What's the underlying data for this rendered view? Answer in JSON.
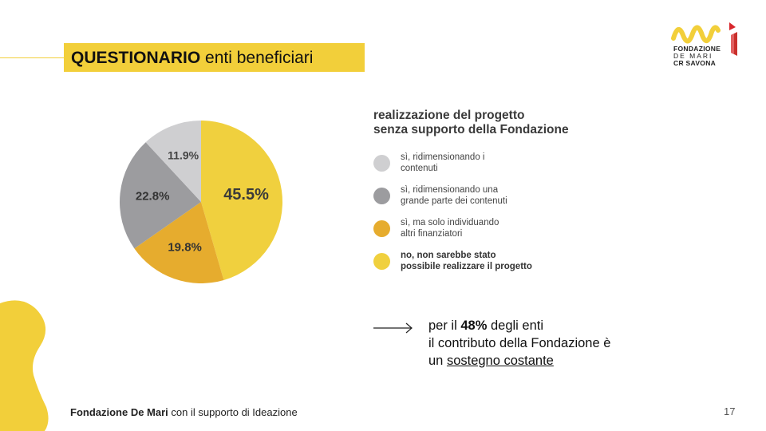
{
  "header": {
    "title_bold": "QUESTIONARIO",
    "title_rest": "enti beneficiari"
  },
  "logo": {
    "line1": "FONDAZIONE",
    "line2": "DE MARI",
    "line3": "CR SAVONA",
    "brand_color": "#f2cf3a",
    "accent_color": "#d8262c"
  },
  "chart_data": {
    "type": "pie",
    "title": "realizzazione del progetto senza supporto della Fondazione",
    "title_lines": [
      "realizzazione del progetto",
      "senza supporto della Fondazione"
    ],
    "slices": [
      {
        "label": "no, non sarebbe stato possibile realizzare il progetto",
        "label_lines": [
          "no, non sarebbe stato",
          "possibile realizzare il progetto"
        ],
        "value": 45.5,
        "display": "45.5%",
        "color": "#f0d03e"
      },
      {
        "label": "sì, ma solo individuando altri finanziatori",
        "label_lines": [
          "sì, ma solo individuando",
          "altri finanziatori"
        ],
        "value": 19.8,
        "display": "19.8%",
        "color": "#e6ac2e"
      },
      {
        "label": "sì, ridimensionando una grande parte dei contenuti",
        "label_lines": [
          "sì, ridimensionando una",
          "grande parte dei contenuti"
        ],
        "value": 22.8,
        "display": "22.8%",
        "color": "#9c9c9f"
      },
      {
        "label": "sì, ridimensionando i contenuti",
        "label_lines": [
          "sì, ridimensionando i",
          "contenuti"
        ],
        "value": 11.9,
        "display": "11.9%",
        "color": "#cfcfd1"
      }
    ],
    "legend_order": [
      3,
      2,
      1,
      0
    ],
    "legend_placement": "right"
  },
  "note": {
    "prefix": "per il ",
    "bold": "48%",
    "middle": " degli enti",
    "line2": "il contributo della Fondazione è",
    "line3_prefix": "un ",
    "underlined": "sostegno costante"
  },
  "footer": {
    "bold": "Fondazione De Mari",
    "rest": " con il supporto di Ideazione",
    "page": "17"
  }
}
